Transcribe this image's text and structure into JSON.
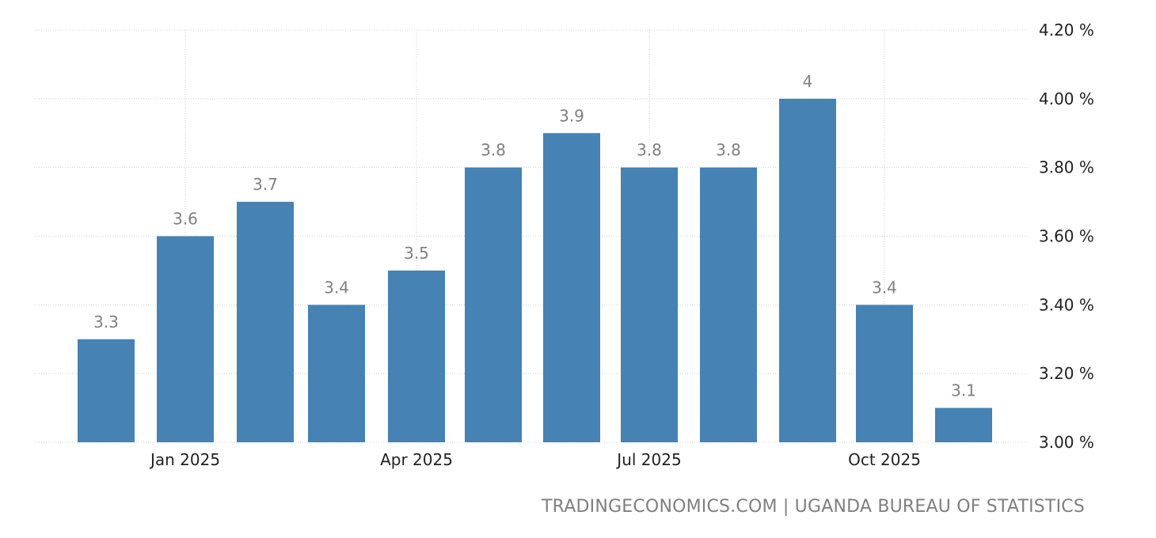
{
  "chart_data": {
    "type": "bar",
    "categories": [
      "Dec 2024",
      "Jan 2025",
      "Feb 2025",
      "Mar 2025",
      "Apr 2025",
      "May 2025",
      "Jun 2025",
      "Jul 2025",
      "Aug 2025",
      "Sep 2025",
      "Oct 2025",
      "Nov 2025"
    ],
    "values": [
      3.3,
      3.6,
      3.7,
      3.4,
      3.5,
      3.8,
      3.9,
      3.8,
      3.8,
      4.0,
      3.4,
      3.1
    ],
    "data_labels": [
      "3.3",
      "3.6",
      "3.7",
      "3.4",
      "3.5",
      "3.8",
      "3.9",
      "3.8",
      "3.8",
      "4",
      "3.4",
      "3.1"
    ],
    "x_tick_labels": [
      {
        "category": "Jan 2025",
        "label": "Jan 2025"
      },
      {
        "category": "Apr 2025",
        "label": "Apr 2025"
      },
      {
        "category": "Jul 2025",
        "label": "Jul 2025"
      },
      {
        "category": "Oct 2025",
        "label": "Oct 2025"
      }
    ],
    "y_ticks": [
      3.0,
      3.2,
      3.4,
      3.6,
      3.8,
      4.0,
      4.2
    ],
    "y_tick_labels": [
      "3.00 %",
      "3.20 %",
      "3.40 %",
      "3.60 %",
      "3.80 %",
      "4.00 %",
      "4.20 %"
    ],
    "ylim": [
      3.0,
      4.2
    ],
    "y_axis_position": "right",
    "grid": true,
    "title": "",
    "xlabel": "",
    "ylabel": "",
    "colors": {
      "bar": "#4682b4",
      "data_label": "#808080",
      "tick_label": "#222222",
      "grid": "#d0d0d0"
    }
  },
  "source": "TRADINGECONOMICS.COM | UGANDA BUREAU OF STATISTICS"
}
